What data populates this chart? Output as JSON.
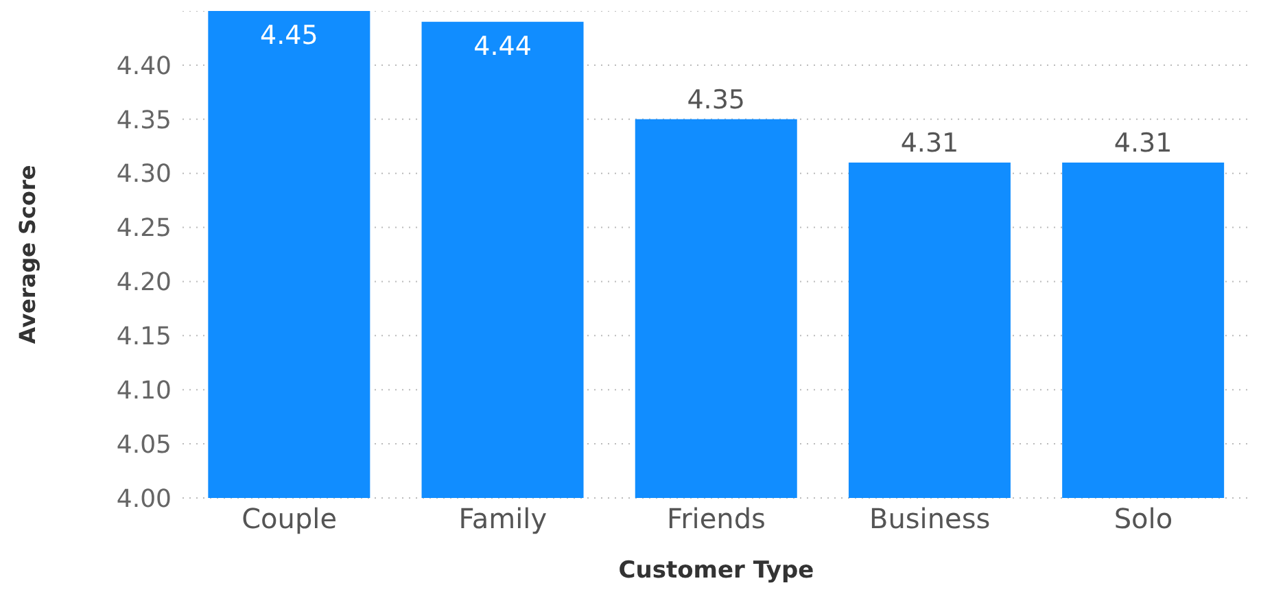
{
  "chart_data": {
    "type": "bar",
    "xlabel": "Customer Type",
    "ylabel": "Average Score",
    "categories": [
      "Couple",
      "Family",
      "Friends",
      "Business",
      "Solo"
    ],
    "values": [
      4.45,
      4.44,
      4.35,
      4.31,
      4.31
    ],
    "color": "#118dff",
    "data_labels": true,
    "ylim": [
      4.0,
      4.45
    ],
    "yticks": [
      {
        "value": 4.0,
        "label": "4.00"
      },
      {
        "value": 4.05,
        "label": "4.05"
      },
      {
        "value": 4.1,
        "label": "4.10"
      },
      {
        "value": 4.15,
        "label": "4.15"
      },
      {
        "value": 4.2,
        "label": "4.20"
      },
      {
        "value": 4.25,
        "label": "4.25"
      },
      {
        "value": 4.3,
        "label": "4.30"
      },
      {
        "value": 4.35,
        "label": "4.35"
      },
      {
        "value": 4.4,
        "label": "4.40"
      }
    ],
    "grid": "y"
  }
}
